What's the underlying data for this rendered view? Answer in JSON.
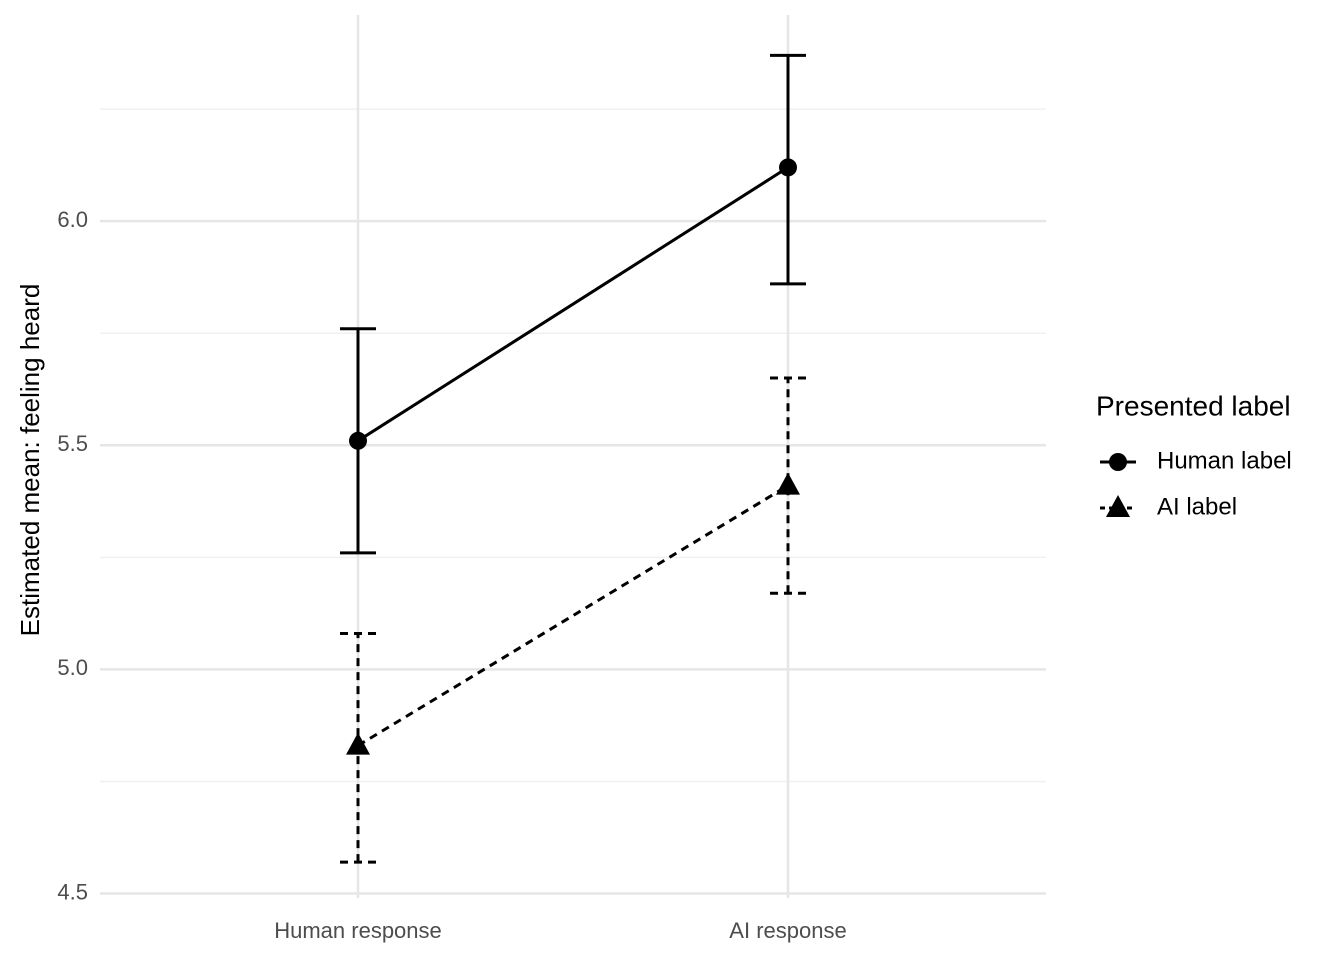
{
  "chart_data": {
    "type": "line",
    "y_label": "Estimated mean: feeling heard",
    "categories": [
      "Human response",
      "AI response"
    ],
    "series": [
      {
        "name": "Human label",
        "color": "#000000",
        "linetype": "solid",
        "shape": "circle",
        "values": [
          5.51,
          6.12
        ],
        "lower": [
          5.26,
          5.86
        ],
        "upper": [
          5.76,
          6.37
        ]
      },
      {
        "name": "AI label",
        "color": "#000000",
        "linetype": "dashed",
        "shape": "triangle",
        "values": [
          4.83,
          5.41
        ],
        "lower": [
          4.57,
          5.17
        ],
        "upper": [
          5.08,
          5.65
        ]
      }
    ],
    "ylim": [
      4.49,
      6.46
    ],
    "yticks": [
      {
        "value": 4.5,
        "label": "4.5"
      },
      {
        "value": 5.0,
        "label": "5.0"
      },
      {
        "value": 5.5,
        "label": "5.5"
      },
      {
        "value": 6.0,
        "label": "6.0"
      }
    ],
    "minor_yticks": [
      4.75,
      5.25,
      5.75,
      6.25
    ],
    "grid": true,
    "legend_title": "Presented label",
    "legend_position": "right"
  }
}
